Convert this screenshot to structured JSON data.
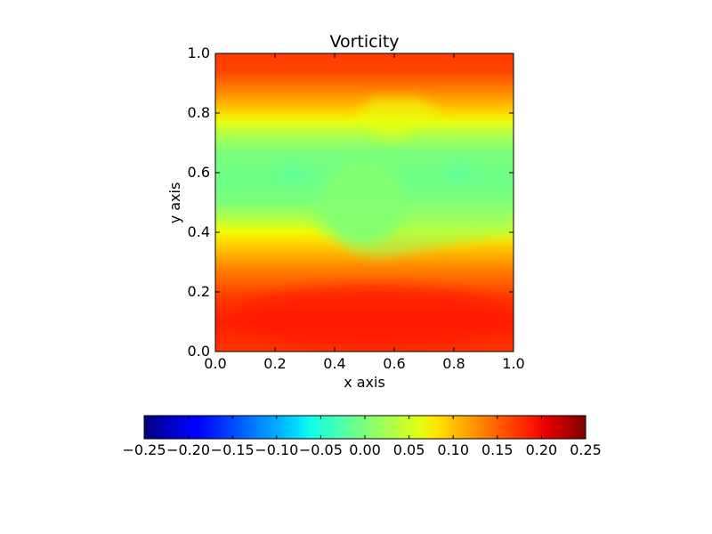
{
  "chart_data": {
    "type": "heatmap",
    "title": "Vorticity",
    "xlabel": "x axis",
    "ylabel": "y axis",
    "xlim": [
      0.0,
      1.0
    ],
    "ylim": [
      0.0,
      1.0
    ],
    "x_ticks": [
      "0.0",
      "0.2",
      "0.4",
      "0.6",
      "0.8",
      "1.0"
    ],
    "y_ticks": [
      "0.0",
      "0.2",
      "0.4",
      "0.6",
      "0.8",
      "1.0"
    ],
    "colormap": "jet",
    "colorbar": {
      "orientation": "horizontal",
      "placement": "below",
      "range": [
        -0.25,
        0.25
      ],
      "ticks": [
        "−0.25",
        "−0.20",
        "−0.15",
        "−0.10",
        "−0.05",
        "0.00",
        "0.05",
        "0.10",
        "0.15",
        "0.20",
        "0.25"
      ]
    },
    "field_description_values": {
      "bottom_band_y_0_to_0_3": 0.19,
      "top_band_y_0_85_to_1_0": 0.17,
      "middle_band_y_0_45_to_0_75": 0.02,
      "circular_obstacle_center": [
        0.5,
        0.5
      ],
      "circular_obstacle_value": 0.03
    }
  }
}
